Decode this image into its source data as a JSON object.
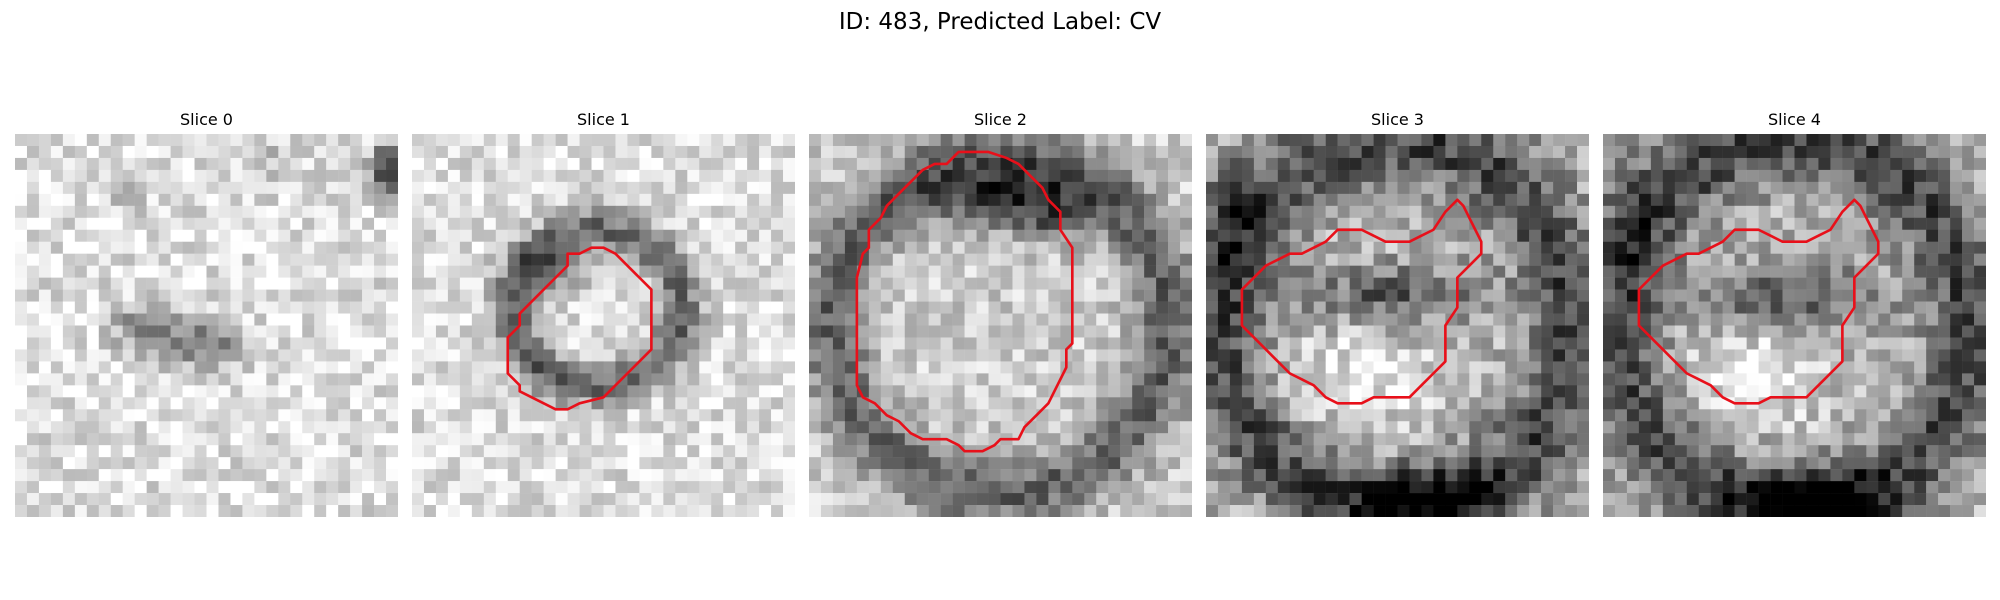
{
  "figure": {
    "title": "ID: 483, Predicted Label: CV",
    "contour_color": "#e8101a",
    "colormap": "grayscale",
    "slices": [
      {
        "title": "Slice 0"
      },
      {
        "title": "Slice 1"
      },
      {
        "title": "Slice 2"
      },
      {
        "title": "Slice 3"
      },
      {
        "title": "Slice 4"
      }
    ]
  }
}
